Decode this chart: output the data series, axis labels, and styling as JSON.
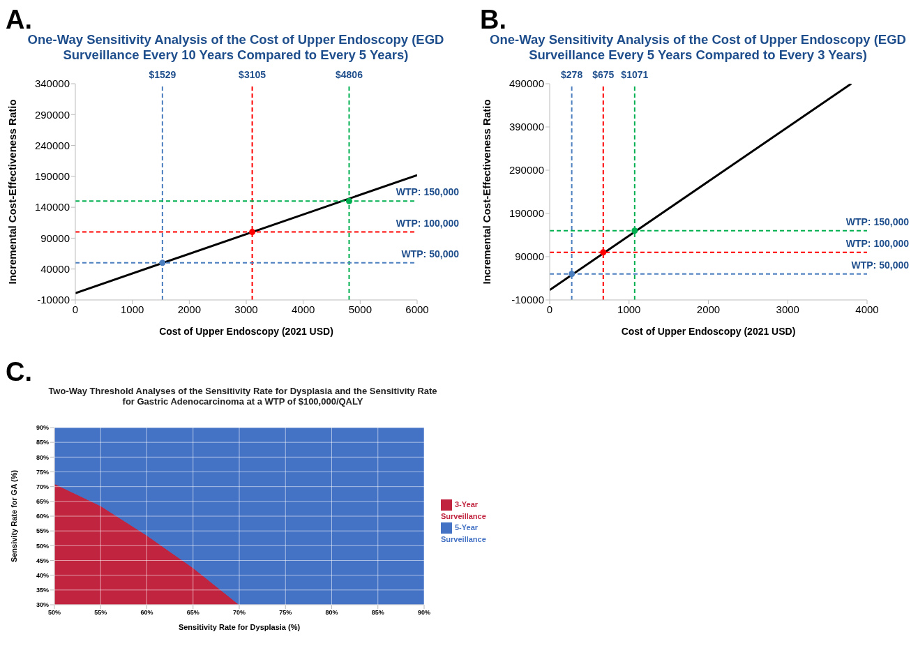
{
  "chart_data": [
    {
      "type": "line",
      "annotations": [
        "A."
      ],
      "title": "One-Way Sensitivity Analysis of the Cost of Upper Endoscopy (EGD Surveillance Every 10 Years Compared to Every 5 Years)",
      "xlabel": "Cost of Upper Endoscopy (2021 USD)",
      "ylabel": "Incremental Cost-Effectiveness Ratio",
      "xlim": [
        0,
        6000
      ],
      "xticks": [
        0,
        1000,
        2000,
        3000,
        4000,
        5000,
        6000
      ],
      "ylim": [
        -10000,
        340000
      ],
      "yticks": [
        -10000,
        40000,
        90000,
        140000,
        190000,
        240000,
        290000,
        340000
      ],
      "series": [
        {
          "type": "line",
          "color": "#000000",
          "x": [
            0,
            6000
          ],
          "values": [
            1000,
            192000
          ]
        },
        {
          "type": "scatter",
          "color": "#4a7ebf",
          "x": [
            1529
          ],
          "values": [
            50000
          ]
        },
        {
          "type": "scatter",
          "color": "#ff0000",
          "x": [
            3105
          ],
          "values": [
            100000
          ]
        },
        {
          "type": "scatter",
          "color": "#00b050",
          "x": [
            4806
          ],
          "values": [
            150000
          ]
        }
      ],
      "ref_lines": [
        {
          "axis": "x",
          "value": 1529,
          "label": "$1529",
          "color": "#4a7ebf",
          "line_style": "dashed"
        },
        {
          "axis": "x",
          "value": 3105,
          "label": "$3105",
          "color": "#ff0000",
          "line_style": "dashed"
        },
        {
          "axis": "x",
          "value": 4806,
          "label": "$4806",
          "color": "#00b050",
          "line_style": "dashed"
        },
        {
          "axis": "y",
          "value": 50000,
          "label": "WTP: 50,000",
          "color": "#4a7ebf",
          "line_style": "dashed"
        },
        {
          "axis": "y",
          "value": 100000,
          "label": "WTP: 100,000",
          "color": "#ff0000",
          "line_style": "dashed"
        },
        {
          "axis": "y",
          "value": 150000,
          "label": "WTP: 150,000",
          "color": "#00b050",
          "line_style": "dashed"
        }
      ]
    },
    {
      "type": "line",
      "annotations": [
        "B."
      ],
      "title": "One-Way Sensitivity Analysis of the Cost of Upper Endoscopy (EGD Surveillance Every 5 Years Compared to Every 3 Years)",
      "xlabel": "Cost of Upper Endoscopy (2021 USD)",
      "ylabel": "Incremental Cost-Effectiveness Ratio",
      "xlim": [
        0,
        4000
      ],
      "xticks": [
        0,
        1000,
        2000,
        3000,
        4000
      ],
      "ylim": [
        -10000,
        490000
      ],
      "yticks": [
        -10000,
        90000,
        190000,
        290000,
        390000,
        490000
      ],
      "series": [
        {
          "type": "line",
          "color": "#000000",
          "x": [
            0,
            3800
          ],
          "values": [
            13000,
            490000
          ]
        },
        {
          "type": "scatter",
          "color": "#4a7ebf",
          "x": [
            278
          ],
          "values": [
            50000
          ]
        },
        {
          "type": "scatter",
          "color": "#ff0000",
          "x": [
            675
          ],
          "values": [
            100000
          ]
        },
        {
          "type": "scatter",
          "color": "#00b050",
          "x": [
            1071
          ],
          "values": [
            150000
          ]
        }
      ],
      "ref_lines": [
        {
          "axis": "x",
          "value": 278,
          "label": "$278",
          "color": "#4a7ebf",
          "line_style": "dashed"
        },
        {
          "axis": "x",
          "value": 675,
          "label": "$675",
          "color": "#ff0000",
          "line_style": "dashed"
        },
        {
          "axis": "x",
          "value": 1071,
          "label": "$1071",
          "color": "#00b050",
          "line_style": "dashed"
        },
        {
          "axis": "y",
          "value": 50000,
          "label": "WTP: 50,000",
          "color": "#4a7ebf",
          "line_style": "dashed"
        },
        {
          "axis": "y",
          "value": 100000,
          "label": "WTP: 100,000",
          "color": "#ff0000",
          "line_style": "dashed"
        },
        {
          "axis": "y",
          "value": 150000,
          "label": "WTP: 150,000",
          "color": "#00b050",
          "line_style": "dashed"
        }
      ]
    },
    {
      "type": "area",
      "annotations": [
        "C."
      ],
      "title": "Two-Way Threshold Analyses of the Sensitivity Rate for Dysplasia and the Sensitivity Rate for Gastric Adenocarcinoma at a WTP of $100,000/QALY",
      "xlabel": "Sensitivity Rate for Dysplasia (%)",
      "ylabel": "Sensivity Rate for GA (%)",
      "xlim": [
        50,
        90
      ],
      "xticks": [
        {
          "value": 50,
          "label": "50%"
        },
        {
          "value": 55,
          "label": "55%"
        },
        {
          "value": 60,
          "label": "60%"
        },
        {
          "value": 65,
          "label": "65%"
        },
        {
          "value": 70,
          "label": "70%"
        },
        {
          "value": 75,
          "label": "75%"
        },
        {
          "value": 80,
          "label": "80%"
        },
        {
          "value": 85,
          "label": "85%"
        },
        {
          "value": 90,
          "label": "90%"
        }
      ],
      "ylim": [
        30,
        90
      ],
      "yticks": [
        {
          "value": 30,
          "label": "30%"
        },
        {
          "value": 35,
          "label": "35%"
        },
        {
          "value": 40,
          "label": "40%"
        },
        {
          "value": 45,
          "label": "45%"
        },
        {
          "value": 50,
          "label": "50%"
        },
        {
          "value": 55,
          "label": "55%"
        },
        {
          "value": 60,
          "label": "60%"
        },
        {
          "value": 65,
          "label": "65%"
        },
        {
          "value": 70,
          "label": "70%"
        },
        {
          "value": 75,
          "label": "75%"
        },
        {
          "value": 80,
          "label": "80%"
        },
        {
          "value": 85,
          "label": "85%"
        },
        {
          "value": 90,
          "label": "90%"
        }
      ],
      "grid": true,
      "legend": "right",
      "x": [
        50,
        55,
        60,
        65,
        70,
        75,
        80,
        85,
        90
      ],
      "series": [
        {
          "name": "3-Year Surveillance",
          "color": "#c0243f",
          "values": [
            71,
            63.5,
            53.5,
            42.5,
            30,
            30,
            30,
            30,
            30
          ]
        },
        {
          "name": "5-Year Surveillance",
          "color": "#4472c4",
          "values": [
            90,
            90,
            90,
            90,
            90,
            90,
            90,
            90,
            90
          ]
        }
      ]
    }
  ]
}
